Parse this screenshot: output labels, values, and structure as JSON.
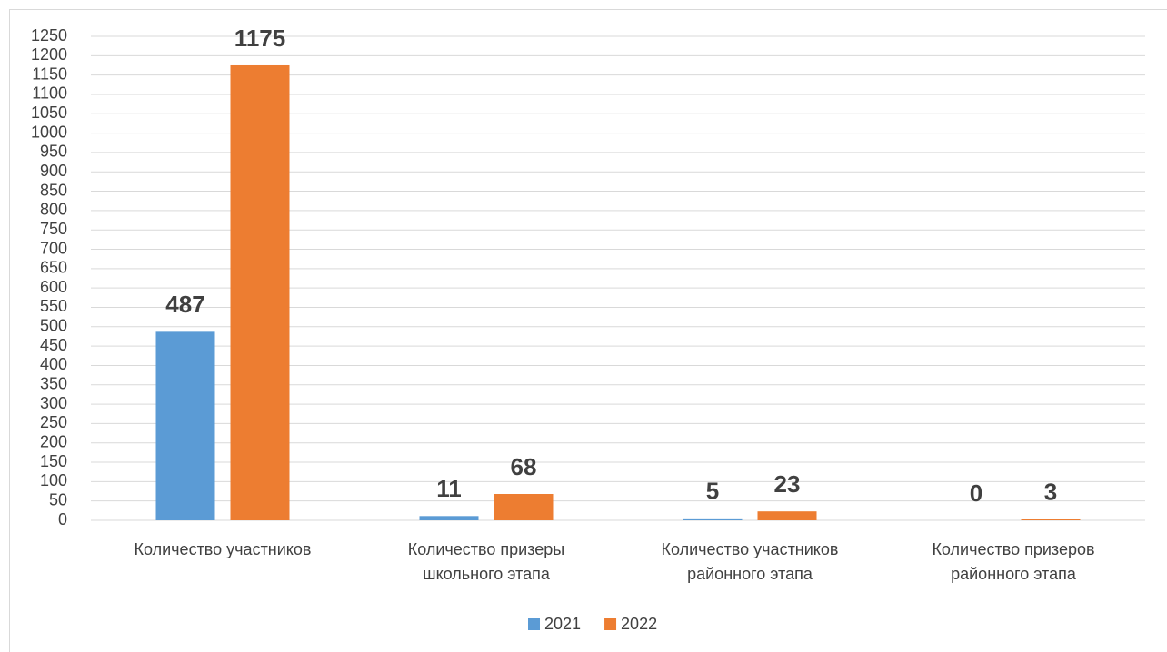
{
  "chart_data": {
    "type": "bar",
    "categories": [
      "Количество участников",
      "Количество призеры школьного этапа",
      "Количество участников районного этапа",
      "Количество призеров районного этапа"
    ],
    "series": [
      {
        "name": "2021",
        "color": "#5b9bd5",
        "values": [
          487,
          11,
          5,
          0
        ]
      },
      {
        "name": "2022",
        "color": "#ed7d31",
        "values": [
          1175,
          68,
          23,
          3
        ]
      }
    ],
    "ylim": [
      0,
      1250
    ],
    "yticks": [
      0,
      50,
      100,
      150,
      200,
      250,
      300,
      350,
      400,
      450,
      500,
      550,
      600,
      650,
      700,
      750,
      800,
      850,
      900,
      950,
      1000,
      1050,
      1100,
      1150,
      1200,
      1250
    ],
    "grid": true,
    "legend": "bottom"
  }
}
